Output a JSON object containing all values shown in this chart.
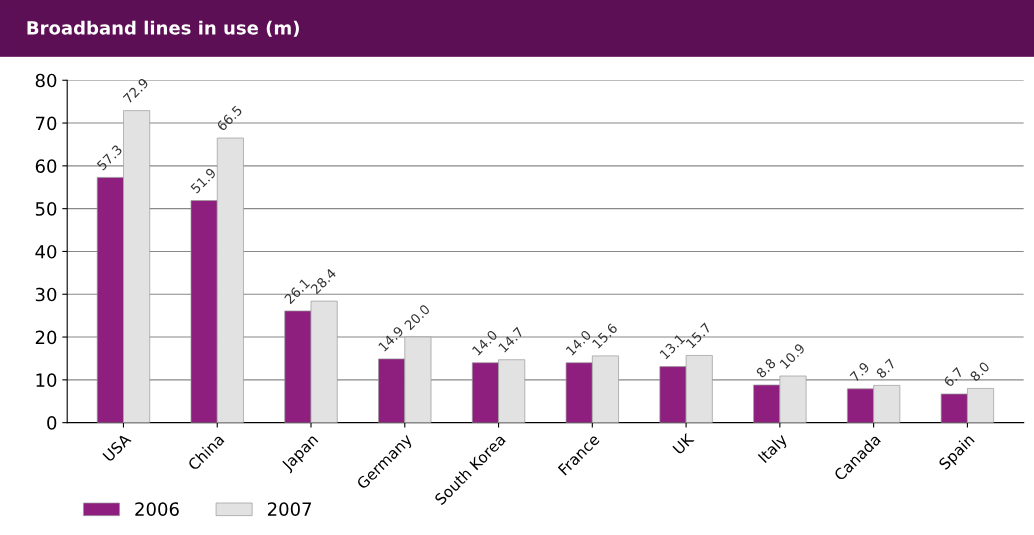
{
  "chart_data": {
    "type": "bar",
    "title": "Broadband lines in use (m)",
    "categories": [
      "USA",
      "China",
      "Japan",
      "Germany",
      "South Korea",
      "France",
      "UK",
      "Italy",
      "Canada",
      "Spain"
    ],
    "series": [
      {
        "name": "2006",
        "color": "#8e1f7e",
        "values": [
          57.3,
          51.9,
          26.1,
          14.9,
          14.0,
          14.0,
          13.1,
          8.8,
          7.9,
          6.7
        ],
        "value_labels": [
          "57.3",
          "51.9",
          "26.1",
          "14.9",
          "14.0",
          "14.0",
          "13.1",
          "8.8",
          "7.9",
          "6.7"
        ]
      },
      {
        "name": "2007",
        "color": "#e2e2e2",
        "values": [
          72.9,
          66.5,
          28.4,
          20.0,
          14.7,
          15.6,
          15.7,
          10.9,
          8.7,
          8.0
        ],
        "value_labels": [
          "72.9",
          "66.5",
          "28.4",
          "20.0",
          "14.7",
          "15.6",
          "15.7",
          "10.9",
          "8.7",
          "8.0"
        ]
      }
    ],
    "ylim": [
      0,
      80
    ],
    "yticks": [
      0,
      10,
      20,
      30,
      40,
      50,
      60,
      70,
      80
    ],
    "grid": "y",
    "legend": "bottom left"
  }
}
